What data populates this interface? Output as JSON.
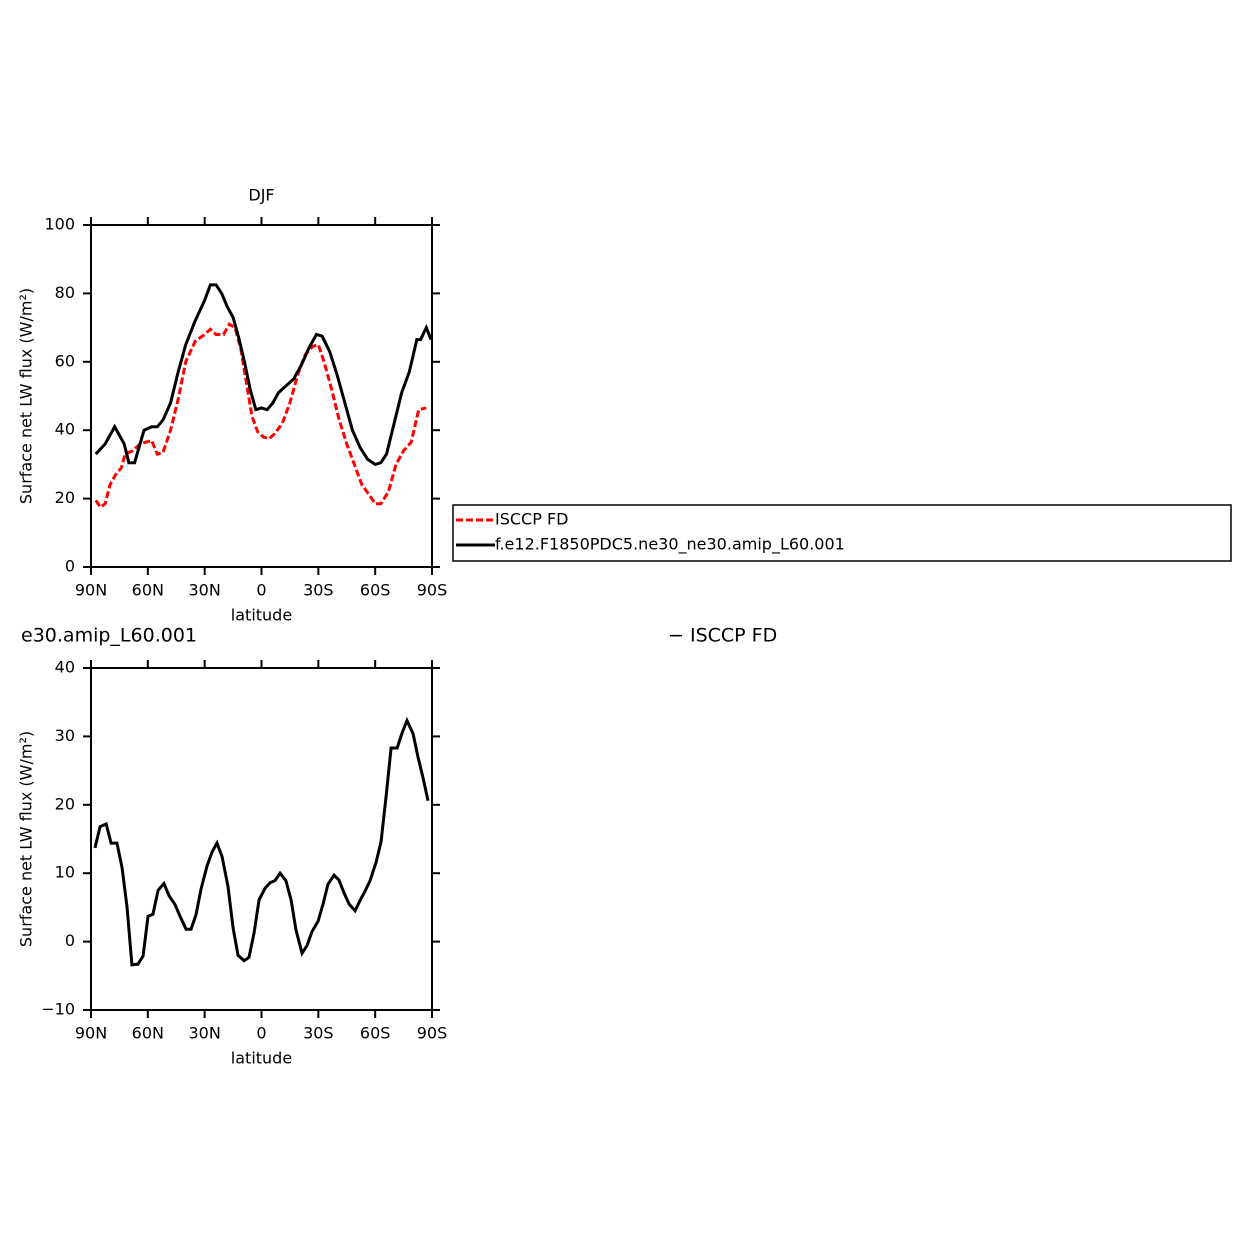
{
  "chart_data": [
    {
      "type": "line",
      "title": "DJF",
      "ylabel": "Surface net LW flux (W/m²)",
      "xlabel": "latitude",
      "xlim": [
        90,
        -90
      ],
      "ylim": [
        0,
        100
      ],
      "xticks": [
        {
          "value": 90,
          "label": "90N"
        },
        {
          "value": 60,
          "label": "60N"
        },
        {
          "value": 30,
          "label": "30N"
        },
        0,
        {
          "value": -30,
          "label": "30S"
        },
        {
          "value": -60,
          "label": "60S"
        },
        {
          "value": -90,
          "label": "90S"
        }
      ],
      "yticks": [
        0,
        20,
        40,
        60,
        80,
        100
      ],
      "series": [
        {
          "name": "ISCCP FD",
          "color": "#ff0000",
          "dash": true,
          "x": [
            87.5,
            85,
            82.5,
            80,
            77,
            74,
            72,
            68,
            64,
            58,
            55,
            52,
            48,
            44,
            40,
            35,
            30,
            27,
            24,
            20,
            17,
            14,
            11,
            8,
            5,
            2,
            -1,
            -4,
            -7,
            -11,
            -15,
            -19,
            -23,
            -27,
            -30,
            -33,
            -37,
            -41,
            -45,
            -49,
            -53,
            -57,
            -60,
            -63,
            -67,
            -71,
            -75,
            -79,
            -83,
            -87
          ],
          "values": [
            19.5,
            17.5,
            18.5,
            24,
            27,
            29,
            33,
            34,
            36,
            37,
            33,
            33.5,
            40,
            49,
            60,
            66,
            68,
            69.5,
            68,
            68,
            71,
            70,
            64,
            54,
            44,
            39.5,
            38,
            37.5,
            39,
            42,
            48,
            56,
            62,
            64.5,
            65,
            60,
            52,
            43,
            36,
            30,
            24,
            21,
            18.5,
            18.5,
            22,
            30,
            34,
            36.5,
            46,
            46.5
          ]
        },
        {
          "name": "f.e12.F1850PDC5.ne30_ne30.amip_L60.001",
          "color": "#000000",
          "dash": false,
          "x": [
            87.5,
            82.5,
            77.5,
            72.5,
            70,
            67,
            62,
            58,
            55,
            52,
            48,
            44,
            40,
            35,
            30,
            27,
            24,
            21,
            18,
            15,
            12,
            9,
            6,
            3,
            0,
            -3,
            -6,
            -9,
            -13,
            -17,
            -21,
            -25,
            -29,
            -32,
            -36,
            -40,
            -44,
            -48,
            -52,
            -56,
            -60,
            -63,
            -66,
            -70,
            -74,
            -78,
            -82,
            -84,
            -87,
            -89.5
          ],
          "values": [
            33,
            36,
            41,
            36,
            30.5,
            30.5,
            40,
            41,
            41,
            43,
            48,
            57,
            65,
            72,
            78,
            82.5,
            82.5,
            80,
            76,
            73,
            67,
            60,
            52,
            46,
            46.5,
            46,
            48,
            51,
            53,
            55,
            59,
            64,
            68,
            67.5,
            63,
            56,
            48,
            40,
            35,
            31.5,
            30,
            30.5,
            33,
            42,
            51,
            57,
            66.5,
            66.5,
            70,
            66.5
          ]
        }
      ]
    },
    {
      "type": "line",
      "title": "e30.amip_L60.001",
      "subtitle": "− ISCCP FD",
      "ylabel": "Surface net LW flux (W/m²)",
      "xlabel": "latitude",
      "xlim": [
        90,
        -90
      ],
      "ylim": [
        -10,
        40
      ],
      "xticks": [
        {
          "value": 90,
          "label": "90N"
        },
        {
          "value": 60,
          "label": "60N"
        },
        {
          "value": 30,
          "label": "30N"
        },
        0,
        {
          "value": -30,
          "label": "30S"
        },
        {
          "value": -60,
          "label": "60S"
        },
        {
          "value": -90,
          "label": "90S"
        }
      ],
      "yticks": [
        {
          "value": -10,
          "label": "−10"
        },
        0,
        10,
        20,
        30,
        40
      ],
      "series": [
        {
          "color": "#000000",
          "x": [
            87.9,
            85.2,
            82,
            79.4,
            76.3,
            73.6,
            71,
            68.4,
            65.2,
            62.5,
            59.9,
            57.3,
            54.6,
            51.5,
            48.8,
            45.6,
            43,
            39.8,
            37.2,
            34.6,
            31.9,
            28.8,
            26.1,
            23.5,
            20.8,
            17.7,
            15,
            12.4,
            9.2,
            6.6,
            3.9,
            1.3,
            -1.9,
            -4.5,
            -7.1,
            -9.8,
            -12.9,
            -15.6,
            -18.2,
            -21.4,
            -24,
            -26.7,
            -29.9,
            -32.5,
            -35.1,
            -38.3,
            -40.9,
            -43.6,
            -46.2,
            -49.4,
            -52,
            -54.7,
            -57.3,
            -60.5,
            -63.1,
            -65.8,
            -68.4,
            -71.6,
            -74.2,
            -76.8,
            -80,
            -82.6,
            -85.3,
            -87.9
          ],
          "values": [
            13.7,
            16.8,
            17.2,
            14.4,
            14.4,
            10.8,
            5.1,
            -3.4,
            -3.3,
            -2.1,
            3.7,
            4,
            7.5,
            8.5,
            6.7,
            5.4,
            3.7,
            1.8,
            1.8,
            3.9,
            7.7,
            11,
            13.1,
            14.4,
            12.4,
            8.1,
            2,
            -2,
            -2.8,
            -2.3,
            1.3,
            6.1,
            7.8,
            8.6,
            8.9,
            10,
            8.9,
            6.1,
            1.7,
            -1.7,
            -0.6,
            1.5,
            3,
            5.5,
            8.4,
            9.7,
            9,
            7.1,
            5.5,
            4.5,
            6,
            7.4,
            8.9,
            11.6,
            14.6,
            21.3,
            28.3,
            28.3,
            30.5,
            32.3,
            30.4,
            27,
            23.9,
            20.6
          ]
        }
      ]
    }
  ]
}
